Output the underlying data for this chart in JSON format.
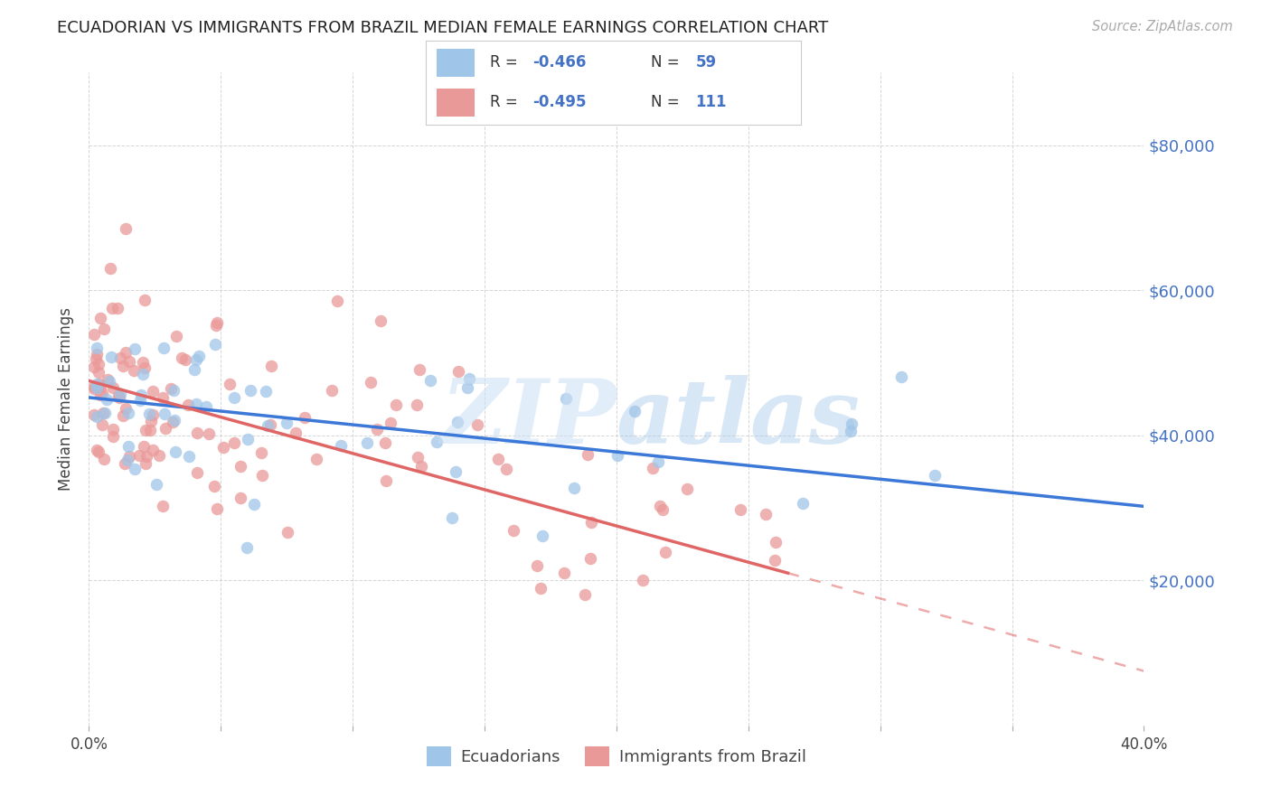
{
  "title": "ECUADORIAN VS IMMIGRANTS FROM BRAZIL MEDIAN FEMALE EARNINGS CORRELATION CHART",
  "source": "Source: ZipAtlas.com",
  "ylabel": "Median Female Earnings",
  "xlim": [
    0.0,
    0.4
  ],
  "ylim": [
    0,
    90000
  ],
  "color_blue": "#9fc5e8",
  "color_pink": "#ea9999",
  "line_blue": "#3c78d8",
  "line_pink": "#e06666",
  "text_blue": "#4472c4",
  "legend_label_blue": "Ecuadorians",
  "legend_label_pink": "Immigrants from Brazil",
  "background_color": "#ffffff",
  "grid_color": "#cccccc",
  "blue_intercept": 45500,
  "blue_slope": -40000,
  "pink_intercept": 47500,
  "pink_slope": -80000,
  "blue_n": 59,
  "pink_n": 111
}
